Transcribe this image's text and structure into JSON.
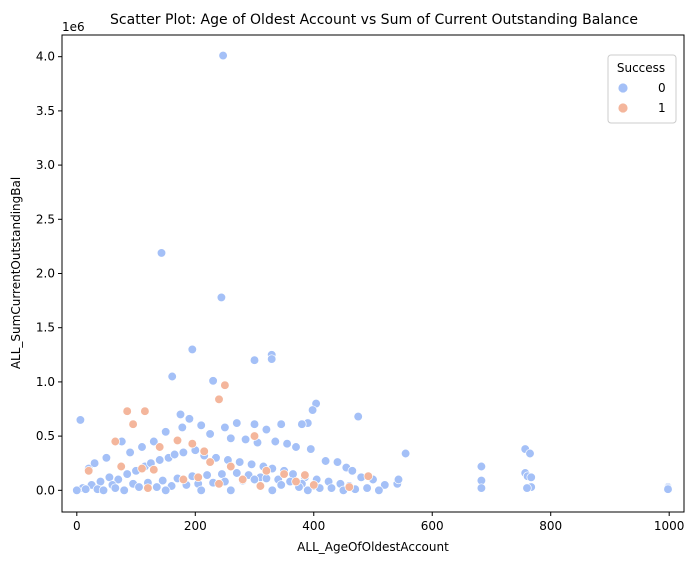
{
  "chart_data": {
    "type": "scatter",
    "title": "Scatter Plot: Age of Oldest Account vs Sum of Current Outstanding Balance",
    "xlabel": "ALL_AgeOfOldestAccount",
    "ylabel": "ALL_SumCurrentOutstandingBal",
    "y_offset_text": "1e6",
    "xlim": [
      -25,
      1025
    ],
    "ylim": [
      -0.2,
      4.2
    ],
    "x_ticks": [
      0,
      200,
      400,
      600,
      800,
      1000
    ],
    "x_tick_labels": [
      "0",
      "200",
      "400",
      "600",
      "800",
      "1000"
    ],
    "y_ticks": [
      0.0,
      0.5,
      1.0,
      1.5,
      2.0,
      2.5,
      3.0,
      3.5,
      4.0
    ],
    "y_tick_labels": [
      "0.0",
      "0.5",
      "1.0",
      "1.5",
      "2.0",
      "2.5",
      "3.0",
      "3.5",
      "4.0"
    ],
    "grid": false,
    "legend": {
      "title": "Success",
      "placement": "top-right"
    },
    "series": [
      {
        "name": "0",
        "color": "#a4c0f7",
        "points": [
          [
            247,
            4.01
          ],
          [
            143,
            2.19
          ],
          [
            244,
            1.78
          ],
          [
            195,
            1.3
          ],
          [
            329,
            1.25
          ],
          [
            329,
            1.21
          ],
          [
            300,
            1.2
          ],
          [
            161,
            1.05
          ],
          [
            230,
            1.01
          ],
          [
            404,
            0.8
          ],
          [
            398,
            0.74
          ],
          [
            475,
            0.68
          ],
          [
            6,
            0.65
          ],
          [
            390,
            0.62
          ],
          [
            380,
            0.61
          ],
          [
            345,
            0.61
          ],
          [
            300,
            0.61
          ],
          [
            270,
            0.62
          ],
          [
            210,
            0.6
          ],
          [
            178,
            0.58
          ],
          [
            150,
            0.54
          ],
          [
            250,
            0.58
          ],
          [
            320,
            0.56
          ],
          [
            76,
            0.45
          ],
          [
            20,
            0.2
          ],
          [
            30,
            0.25
          ],
          [
            50,
            0.3
          ],
          [
            90,
            0.35
          ],
          [
            110,
            0.4
          ],
          [
            130,
            0.45
          ],
          [
            175,
            0.7
          ],
          [
            190,
            0.66
          ],
          [
            225,
            0.52
          ],
          [
            260,
            0.48
          ],
          [
            285,
            0.47
          ],
          [
            305,
            0.44
          ],
          [
            335,
            0.45
          ],
          [
            355,
            0.43
          ],
          [
            370,
            0.4
          ],
          [
            395,
            0.38
          ],
          [
            420,
            0.27
          ],
          [
            440,
            0.26
          ],
          [
            455,
            0.21
          ],
          [
            465,
            0.18
          ],
          [
            480,
            0.12
          ],
          [
            500,
            0.1
          ],
          [
            520,
            0.05
          ],
          [
            541,
            0.06
          ],
          [
            543,
            0.1
          ],
          [
            555,
            0.34
          ],
          [
            683,
            0.22
          ],
          [
            683,
            0.09
          ],
          [
            683,
            0.02
          ],
          [
            757,
            0.38
          ],
          [
            757,
            0.16
          ],
          [
            761,
            0.13
          ],
          [
            765,
            0.34
          ],
          [
            767,
            0.12
          ],
          [
            767,
            0.03
          ],
          [
            760,
            0.02
          ],
          [
            998,
            0.03
          ],
          [
            998,
            0.02
          ],
          [
            998,
            0.01
          ],
          [
            10,
            0.02
          ],
          [
            25,
            0.05
          ],
          [
            40,
            0.08
          ],
          [
            55,
            0.12
          ],
          [
            70,
            0.1
          ],
          [
            85,
            0.15
          ],
          [
            100,
            0.18
          ],
          [
            115,
            0.22
          ],
          [
            125,
            0.25
          ],
          [
            140,
            0.28
          ],
          [
            155,
            0.3
          ],
          [
            165,
            0.33
          ],
          [
            180,
            0.35
          ],
          [
            200,
            0.37
          ],
          [
            215,
            0.32
          ],
          [
            235,
            0.3
          ],
          [
            255,
            0.28
          ],
          [
            275,
            0.26
          ],
          [
            295,
            0.24
          ],
          [
            315,
            0.22
          ],
          [
            330,
            0.2
          ],
          [
            350,
            0.18
          ],
          [
            365,
            0.15
          ],
          [
            385,
            0.12
          ],
          [
            405,
            0.1
          ],
          [
            425,
            0.08
          ],
          [
            445,
            0.06
          ],
          [
            460,
            0.04
          ],
          [
            60,
            0.05
          ],
          [
            95,
            0.06
          ],
          [
            120,
            0.07
          ],
          [
            145,
            0.09
          ],
          [
            170,
            0.11
          ],
          [
            195,
            0.13
          ],
          [
            220,
            0.14
          ],
          [
            245,
            0.15
          ],
          [
            270,
            0.16
          ],
          [
            290,
            0.14
          ],
          [
            310,
            0.12
          ],
          [
            340,
            0.1
          ],
          [
            360,
            0.08
          ],
          [
            380,
            0.06
          ],
          [
            400,
            0.04
          ],
          [
            410,
            0.02
          ],
          [
            15,
            0.01
          ],
          [
            35,
            0.01
          ],
          [
            65,
            0.02
          ],
          [
            105,
            0.03
          ],
          [
            135,
            0.03
          ],
          [
            160,
            0.04
          ],
          [
            185,
            0.05
          ],
          [
            205,
            0.06
          ],
          [
            230,
            0.07
          ],
          [
            250,
            0.08
          ],
          [
            280,
            0.09
          ],
          [
            300,
            0.1
          ],
          [
            320,
            0.11
          ],
          [
            345,
            0.05
          ],
          [
            375,
            0.03
          ],
          [
            430,
            0.02
          ],
          [
            470,
            0.01
          ],
          [
            490,
            0.02
          ],
          [
            0,
            0.0
          ],
          [
            45,
            0.0
          ],
          [
            80,
            0.0
          ],
          [
            150,
            0.0
          ],
          [
            210,
            0.0
          ],
          [
            260,
            0.0
          ],
          [
            330,
            0.0
          ],
          [
            390,
            0.0
          ],
          [
            450,
            0.0
          ],
          [
            510,
            0.0
          ]
        ]
      },
      {
        "name": "1",
        "color": "#f4b69c",
        "points": [
          [
            250,
            0.97
          ],
          [
            240,
            0.84
          ],
          [
            115,
            0.73
          ],
          [
            85,
            0.73
          ],
          [
            95,
            0.61
          ],
          [
            65,
            0.45
          ],
          [
            492,
            0.13
          ],
          [
            300,
            0.5
          ],
          [
            195,
            0.43
          ],
          [
            170,
            0.46
          ],
          [
            140,
            0.4
          ],
          [
            215,
            0.36
          ],
          [
            260,
            0.22
          ],
          [
            20,
            0.18
          ],
          [
            110,
            0.2
          ],
          [
            130,
            0.19
          ],
          [
            205,
            0.12
          ],
          [
            280,
            0.1
          ],
          [
            320,
            0.18
          ],
          [
            350,
            0.15
          ],
          [
            370,
            0.08
          ],
          [
            400,
            0.05
          ],
          [
            460,
            0.03
          ],
          [
            225,
            0.26
          ],
          [
            75,
            0.22
          ],
          [
            180,
            0.1
          ],
          [
            240,
            0.06
          ],
          [
            310,
            0.04
          ],
          [
            120,
            0.02
          ],
          [
            385,
            0.14
          ]
        ]
      }
    ]
  }
}
